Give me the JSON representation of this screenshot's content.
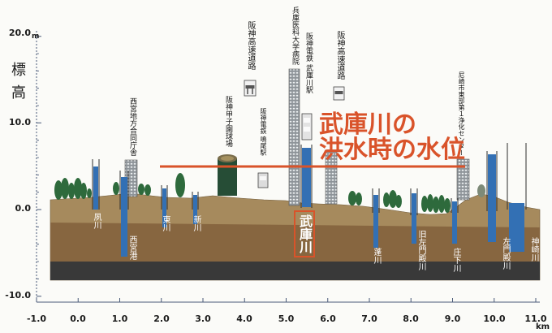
{
  "axis": {
    "y_title": "標高",
    "y_unit": "m",
    "y_ticks": [
      "20.0",
      "10.0",
      "0.0",
      "-10.0"
    ],
    "x_ticks": [
      "-1.0",
      "0.0",
      "1.0",
      "2.0",
      "3.0",
      "4.0",
      "5.0",
      "6.0",
      "7.0",
      "8.0",
      "9.0",
      "10.0",
      "11.0"
    ],
    "x_unit": "km"
  },
  "landmarks": [
    "西宮地方合同庁舎",
    "阪神甲子園球場",
    "阪神高速道路",
    "阪神電鉄 鳴尾駅",
    "兵庫医科大学病院",
    "阪神電鉄 武庫川駅",
    "阪神高速道路",
    "尼崎市東部第１浄化センター"
  ],
  "rivers": [
    "夙川",
    "西宮港",
    "東川",
    "新川",
    "蓬川",
    "旧左門殿川",
    "庄下川",
    "左門殿川",
    "神崎川"
  ],
  "main_river": "武庫川",
  "flood_level": {
    "line1": "武庫川の",
    "line2": "洪水時の水位"
  },
  "colors": {
    "water": "#3370b4",
    "flood": "#d9532a",
    "g-top": "#a68a5d",
    "g-mid": "#876640",
    "g-base": "#393939",
    "tree": "#2e6a3c"
  }
}
